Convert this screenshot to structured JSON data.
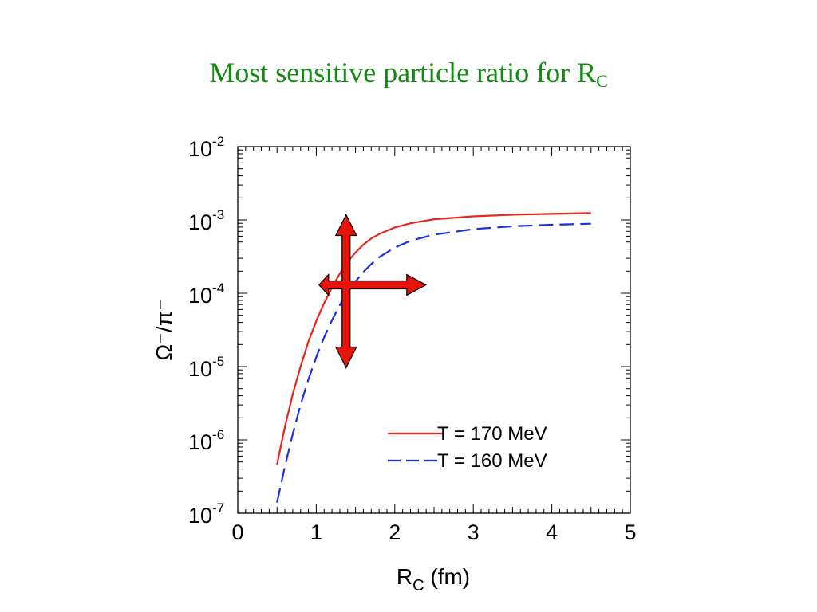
{
  "slide": {
    "title_main": "Most sensitive particle ratio for R",
    "title_sub": "C"
  },
  "chart_data": {
    "type": "line",
    "title": "Most sensitive particle ratio for RC",
    "xlabel": "R_C (fm)",
    "ylabel": "Ω⁻/π⁻",
    "xlim": [
      0,
      5
    ],
    "ylim": [
      1e-07,
      0.01
    ],
    "yscale": "log",
    "grid": false,
    "legend_position": "lower-right",
    "x_ticks": [
      0,
      1,
      2,
      3,
      4,
      5
    ],
    "y_ticks": [
      {
        "base": "10",
        "exp": "-7"
      },
      {
        "base": "10",
        "exp": "-6"
      },
      {
        "base": "10",
        "exp": "-5"
      },
      {
        "base": "10",
        "exp": "-4"
      },
      {
        "base": "10",
        "exp": "-3"
      },
      {
        "base": "10",
        "exp": "-2"
      }
    ],
    "series": [
      {
        "name": "T = 170 MeV",
        "color": "#e8251c",
        "style": "solid",
        "x": [
          0.5,
          0.6,
          0.7,
          0.8,
          0.9,
          1.0,
          1.1,
          1.2,
          1.3,
          1.4,
          1.5,
          1.6,
          1.7,
          1.8,
          2.0,
          2.2,
          2.5,
          3.0,
          3.5,
          4.0,
          4.5
        ],
        "y": [
          4.6e-07,
          1.5e-06,
          4.2e-06,
          1e-05,
          2.2e-05,
          4.2e-05,
          7.3e-05,
          0.00012,
          0.000185,
          0.00027,
          0.00036,
          0.00046,
          0.00056,
          0.00064,
          0.00079,
          0.0009,
          0.00102,
          0.00112,
          0.00118,
          0.00121,
          0.00124
        ]
      },
      {
        "name": "T = 160 MeV",
        "color": "#1a2ee6",
        "style": "dashed",
        "x": [
          0.5,
          0.6,
          0.7,
          0.8,
          0.9,
          1.0,
          1.1,
          1.2,
          1.3,
          1.4,
          1.5,
          1.6,
          1.7,
          1.8,
          2.0,
          2.2,
          2.5,
          3.0,
          3.5,
          4.0,
          4.5
        ],
        "y": [
          1.4e-07,
          4.3e-07,
          1.2e-06,
          3e-06,
          6.7e-06,
          1.35e-05,
          2.5e-05,
          4.3e-05,
          6.9e-05,
          0.000103,
          0.000145,
          0.000195,
          0.00025,
          0.00031,
          0.00042,
          0.00052,
          0.00063,
          0.00075,
          0.00082,
          0.00086,
          0.00089
        ]
      }
    ],
    "annotation": {
      "type": "double-headed-cross-arrow",
      "color": "#e8140c",
      "center_x": 1.38,
      "center_y": 0.00013
    }
  }
}
